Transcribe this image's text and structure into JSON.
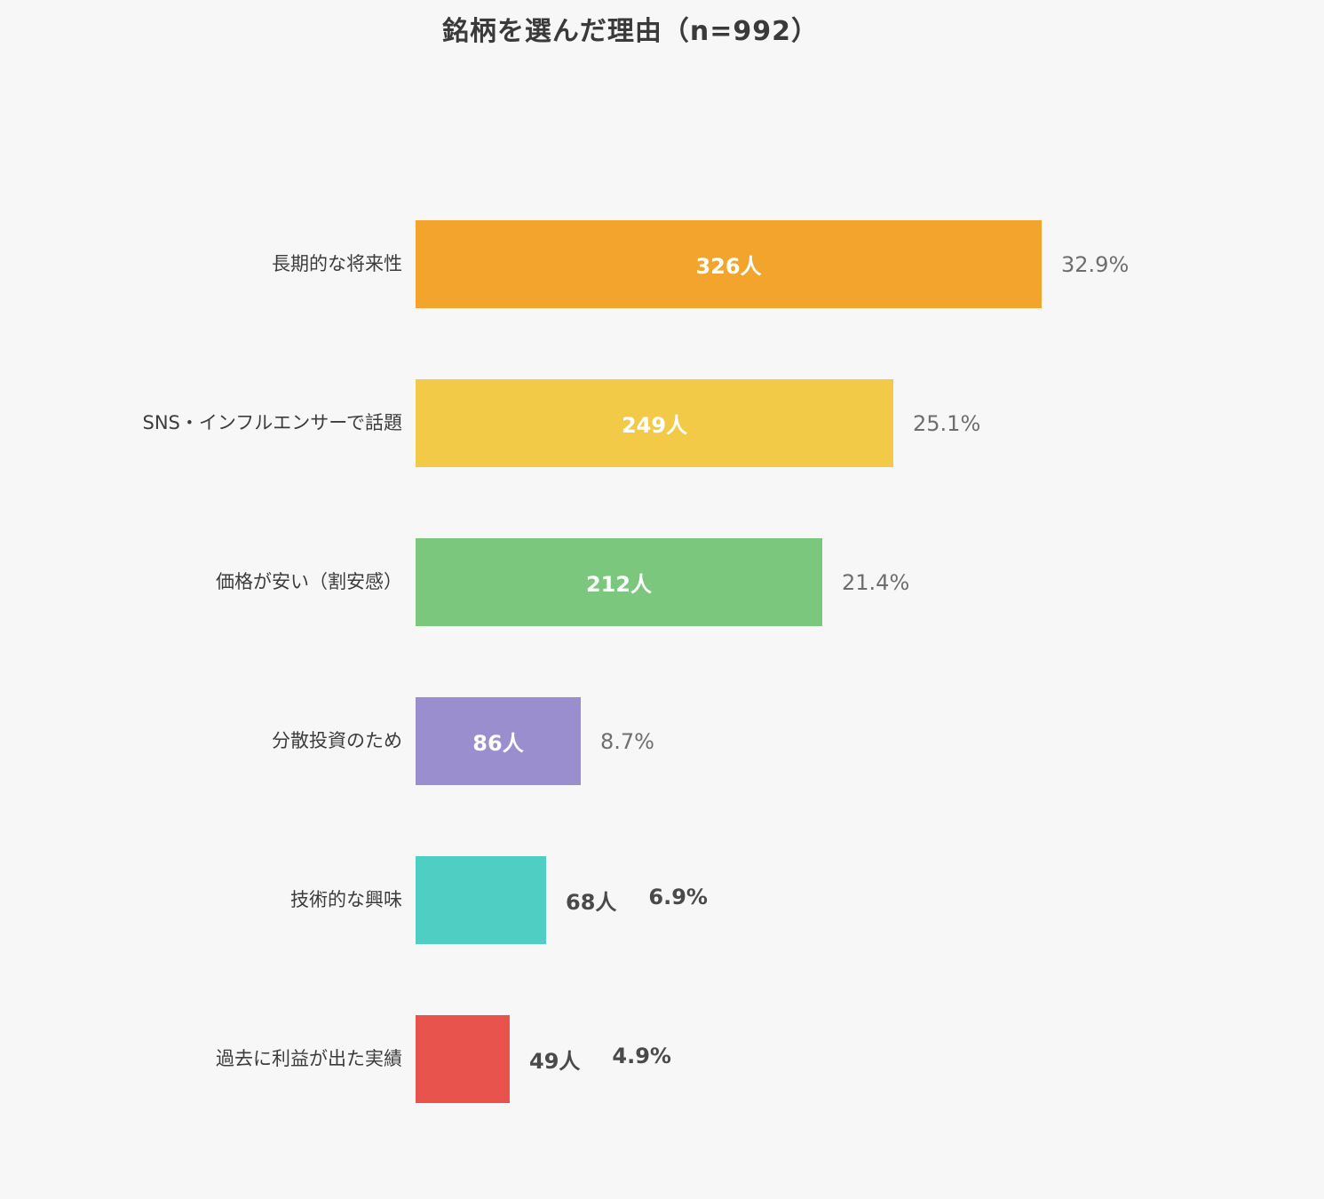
{
  "page": {
    "background_color": "#F7F7F7"
  },
  "chart_data": {
    "type": "bar",
    "orientation": "horizontal",
    "title": "銘柄を選んだ理由（n=992）",
    "sample_size": 992,
    "xlabel": "",
    "ylabel": "",
    "grid": "off",
    "legend": "none",
    "axis_ticks": "none",
    "max_value": 326,
    "categories": [
      "長期的な将来性",
      "SNS・インフルエンサーで話題",
      "価格が安い（割安感）",
      "分散投資のため",
      "技術的な興味",
      "過去に利益が出た実績"
    ],
    "values": [
      326,
      249,
      212,
      86,
      68,
      49
    ],
    "value_labels": [
      "326人",
      "249人",
      "212人",
      "86人",
      "68人",
      "49人"
    ],
    "percent_values": [
      32.9,
      25.1,
      21.4,
      8.7,
      6.9,
      4.9
    ],
    "percent_labels": [
      "32.9%",
      "25.1%",
      "21.4%",
      "8.7%",
      "6.9%",
      "4.9%"
    ],
    "value_label_inside": [
      true,
      true,
      true,
      true,
      false,
      false
    ],
    "bar_colors": [
      "#F2A42D",
      "#F2CA47",
      "#7CC77E",
      "#9B8ECE",
      "#4FCEC3",
      "#E9534E"
    ],
    "inside_label_color": "#FFFFFF",
    "percent_label_color": "#6E6E6E",
    "outside_label_color": "#4A4A4A",
    "title_color": "#3A3A3A",
    "category_label_color": "#3C3C3C"
  }
}
